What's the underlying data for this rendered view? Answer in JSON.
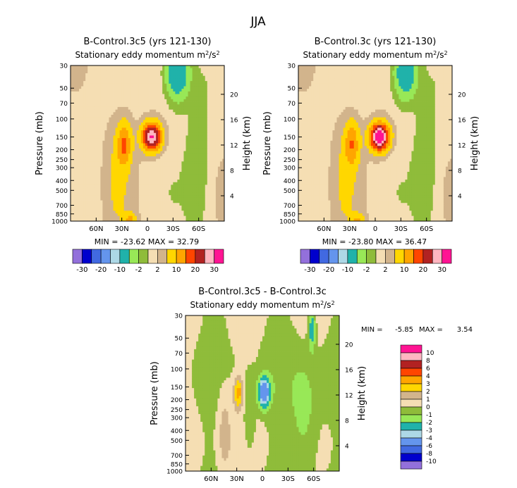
{
  "page_title": "JJA",
  "colors": {
    "cont": {
      "-30": "#9370db",
      "-25": "#0000cd",
      "-20": "#4169e1",
      "-15": "#6495ed",
      "-10": "#add8e6",
      "-5": "#20b2aa",
      "-2": "#98e857",
      "0": "#8fbc3a",
      "2": "#f5deb3",
      "5": "#d2b48c",
      "10": "#ffd700",
      "15": "#ffa500",
      "20": "#ff4500",
      "25": "#b22222",
      "30": "#ffb6c1",
      "35": "#ff1493"
    },
    "diff": {
      "-10": "#9370db",
      "-8": "#0000cd",
      "-6": "#4169e1",
      "-4": "#6495ed",
      "-3": "#add8e6",
      "-2": "#20b2aa",
      "-1": "#98e857",
      "0": "#8fbc3a",
      "1": "#f5deb3",
      "2": "#d2b48c",
      "3": "#ffd700",
      "4": "#ffa500",
      "6": "#ff4500",
      "8": "#b22222",
      "10": "#ffb6c1",
      "12": "#ff1493"
    }
  },
  "chart_data": [
    {
      "type": "contour",
      "title": "B-Control.3c5 (yrs 121-130)",
      "subtitle": "Stationary eddy momentum",
      "units_main": "m",
      "units_sup": "2",
      "units_rest": "/s",
      "units_sup2": "2",
      "ylabel": "Pressure (mb)",
      "y2label": "Height (km)",
      "x_ticks": [
        "60N",
        "30N",
        "0",
        "30S",
        "60S"
      ],
      "x_tick_lat": [
        60,
        30,
        0,
        -30,
        -60
      ],
      "x_range": [
        90,
        -90
      ],
      "y_ticks": [
        "30",
        "50",
        "70",
        "100",
        "150",
        "200",
        "250",
        "300",
        "400",
        "500",
        "700",
        "850",
        "1000"
      ],
      "y_tick_p": [
        30,
        50,
        70,
        100,
        150,
        200,
        250,
        300,
        400,
        500,
        700,
        850,
        1000
      ],
      "y_range": [
        30,
        1000
      ],
      "y2_ticks": [
        "20",
        "16",
        "12",
        "8",
        "4"
      ],
      "y2_tick_km": [
        20,
        16,
        12,
        8,
        4
      ],
      "min_label": "MIN = -23.62",
      "max_label": "MAX = 32.79",
      "min": -23.62,
      "max": 32.79,
      "levels": [
        -30,
        -25,
        -20,
        -15,
        -10,
        -5,
        -2,
        0,
        2,
        5,
        10,
        15,
        20,
        25,
        30
      ],
      "colorbar_labels": [
        "-30",
        "-20",
        "-10",
        "-2",
        "2",
        "10",
        "20",
        "30"
      ],
      "features": [
        {
          "lat": -5,
          "p": 150,
          "amp": 30,
          "wlat": 8,
          "wp": 0.22
        },
        {
          "lat": 27,
          "p": 175,
          "amp": 13,
          "wlat": 6,
          "wp": 0.35
        },
        {
          "lat": 35,
          "p": 400,
          "amp": 4,
          "wlat": 10,
          "wp": 0.9
        },
        {
          "lat": -35,
          "p": 35,
          "amp": -12,
          "wlat": 10,
          "wp": 0.45
        },
        {
          "lat": -60,
          "p": 300,
          "amp": -3,
          "wlat": 10,
          "wp": 1.2
        },
        {
          "lat": 20,
          "p": 1000,
          "amp": 10,
          "wlat": 5,
          "wp": 0.12
        }
      ]
    },
    {
      "type": "contour",
      "title": "B-Control.3c (yrs 121-130)",
      "subtitle": "Stationary eddy momentum",
      "units_main": "m",
      "units_sup": "2",
      "units_rest": "/s",
      "units_sup2": "2",
      "ylabel": "Pressure (mb)",
      "y2label": "Height (km)",
      "x_ticks": [
        "60N",
        "30N",
        "0",
        "30S",
        "60S"
      ],
      "x_tick_lat": [
        60,
        30,
        0,
        -30,
        -60
      ],
      "x_range": [
        90,
        -90
      ],
      "y_ticks": [
        "30",
        "50",
        "70",
        "100",
        "150",
        "200",
        "250",
        "300",
        "400",
        "500",
        "700",
        "850",
        "1000"
      ],
      "y_tick_p": [
        30,
        50,
        70,
        100,
        150,
        200,
        250,
        300,
        400,
        500,
        700,
        850,
        1000
      ],
      "y_range": [
        30,
        1000
      ],
      "y2_ticks": [
        "20",
        "16",
        "12",
        "8",
        "4"
      ],
      "y2_tick_km": [
        20,
        16,
        12,
        8,
        4
      ],
      "min_label": "MIN = -23.80",
      "max_label": "MAX = 36.47",
      "min": -23.8,
      "max": 36.47,
      "levels": [
        -30,
        -25,
        -20,
        -15,
        -10,
        -5,
        -2,
        0,
        2,
        5,
        10,
        15,
        20,
        25,
        30
      ],
      "colorbar_labels": [
        "-30",
        "-20",
        "-10",
        "-2",
        "2",
        "10",
        "20",
        "30"
      ],
      "features": [
        {
          "lat": -5,
          "p": 150,
          "amp": 34,
          "wlat": 8,
          "wp": 0.22
        },
        {
          "lat": 27,
          "p": 175,
          "amp": 12,
          "wlat": 6,
          "wp": 0.35
        },
        {
          "lat": 35,
          "p": 400,
          "amp": 4,
          "wlat": 10,
          "wp": 0.9
        },
        {
          "lat": -35,
          "p": 35,
          "amp": -11,
          "wlat": 10,
          "wp": 0.45
        },
        {
          "lat": -60,
          "p": 300,
          "amp": -3,
          "wlat": 10,
          "wp": 1.2
        },
        {
          "lat": 20,
          "p": 1000,
          "amp": 9,
          "wlat": 5,
          "wp": 0.12
        }
      ]
    },
    {
      "type": "contour",
      "title": "B-Control.3c5 - B-Control.3c",
      "subtitle": "Stationary eddy momentum",
      "units_main": "m",
      "units_sup": "2",
      "units_rest": "/s",
      "units_sup2": "2",
      "ylabel": "Pressure (mb)",
      "y2label": "Height (km)",
      "x_ticks": [
        "60N",
        "30N",
        "0",
        "30S",
        "60S"
      ],
      "x_tick_lat": [
        60,
        30,
        0,
        -30,
        -60
      ],
      "x_range": [
        90,
        -90
      ],
      "y_ticks": [
        "30",
        "50",
        "70",
        "100",
        "150",
        "200",
        "250",
        "300",
        "400",
        "500",
        "700",
        "850",
        "1000"
      ],
      "y_tick_p": [
        30,
        50,
        70,
        100,
        150,
        200,
        250,
        300,
        400,
        500,
        700,
        850,
        1000
      ],
      "y_range": [
        30,
        1000
      ],
      "y2_ticks": [
        "20",
        "16",
        "12",
        "8",
        "4"
      ],
      "y2_tick_km": [
        20,
        16,
        12,
        8,
        4
      ],
      "min_label": "MIN =",
      "min_value": "-5.85",
      "max_label": "MAX =",
      "max_value": "3.54",
      "min": -5.85,
      "max": 3.54,
      "levels": [
        -10,
        -8,
        -6,
        -4,
        -3,
        -2,
        -1,
        0,
        1,
        2,
        3,
        4,
        6,
        8,
        10
      ],
      "colorbar_labels": [
        "10",
        "8",
        "6",
        "4",
        "3",
        "2",
        "1",
        "0",
        "-1",
        "-2",
        "-3",
        "-4",
        "-6",
        "-8",
        "-10"
      ],
      "features": [
        {
          "lat": -2,
          "p": 170,
          "amp": -5.5,
          "wlat": 5,
          "wp": 0.25
        },
        {
          "lat": 28,
          "p": 170,
          "amp": 3.3,
          "wlat": 4,
          "wp": 0.25
        },
        {
          "lat": -50,
          "p": 300,
          "amp": -1.8,
          "wlat": 12,
          "wp": 1.0
        },
        {
          "lat": -58,
          "p": 40,
          "amp": -3.2,
          "wlat": 3,
          "wp": 0.35
        },
        {
          "lat": 15,
          "p": 300,
          "amp": -1.5,
          "wlat": 5,
          "wp": 0.6
        },
        {
          "lat": 45,
          "p": 400,
          "amp": 1.5,
          "wlat": 6,
          "wp": 0.8
        }
      ]
    }
  ]
}
